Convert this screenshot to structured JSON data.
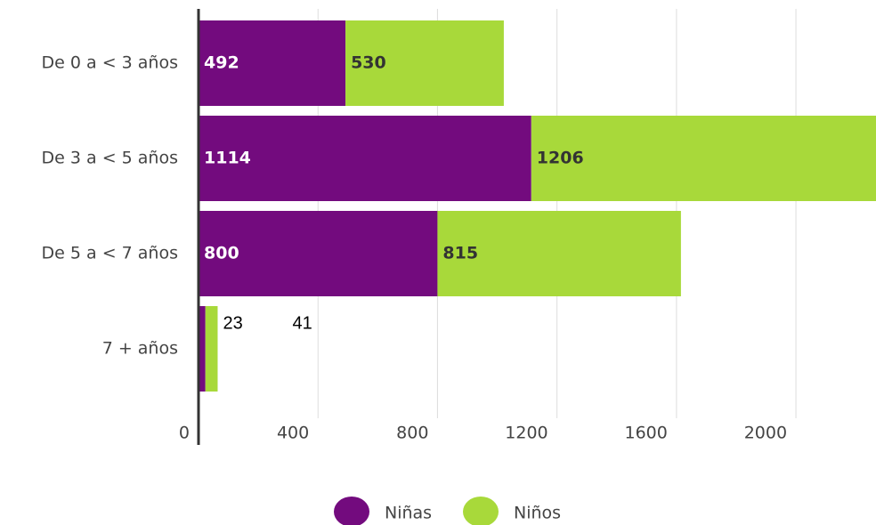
{
  "chart_data": {
    "type": "stacked-bar-horizontal",
    "categories": [
      "De 0 a < 3 años",
      "De 3 a < 5 años",
      "De 5 a < 7 años",
      "7 + años"
    ],
    "series": [
      {
        "name": "Niñas",
        "color": "#730b7e",
        "values": [
          492,
          1114,
          800,
          23
        ]
      },
      {
        "name": "Niños",
        "color": "#a8d93a",
        "values": [
          530,
          1206,
          815,
          41
        ]
      }
    ],
    "xlim": [
      0,
      2268
    ],
    "xticks": [
      0,
      400,
      800,
      1200,
      1600,
      2000
    ],
    "grid": true,
    "legend": "bottom"
  }
}
